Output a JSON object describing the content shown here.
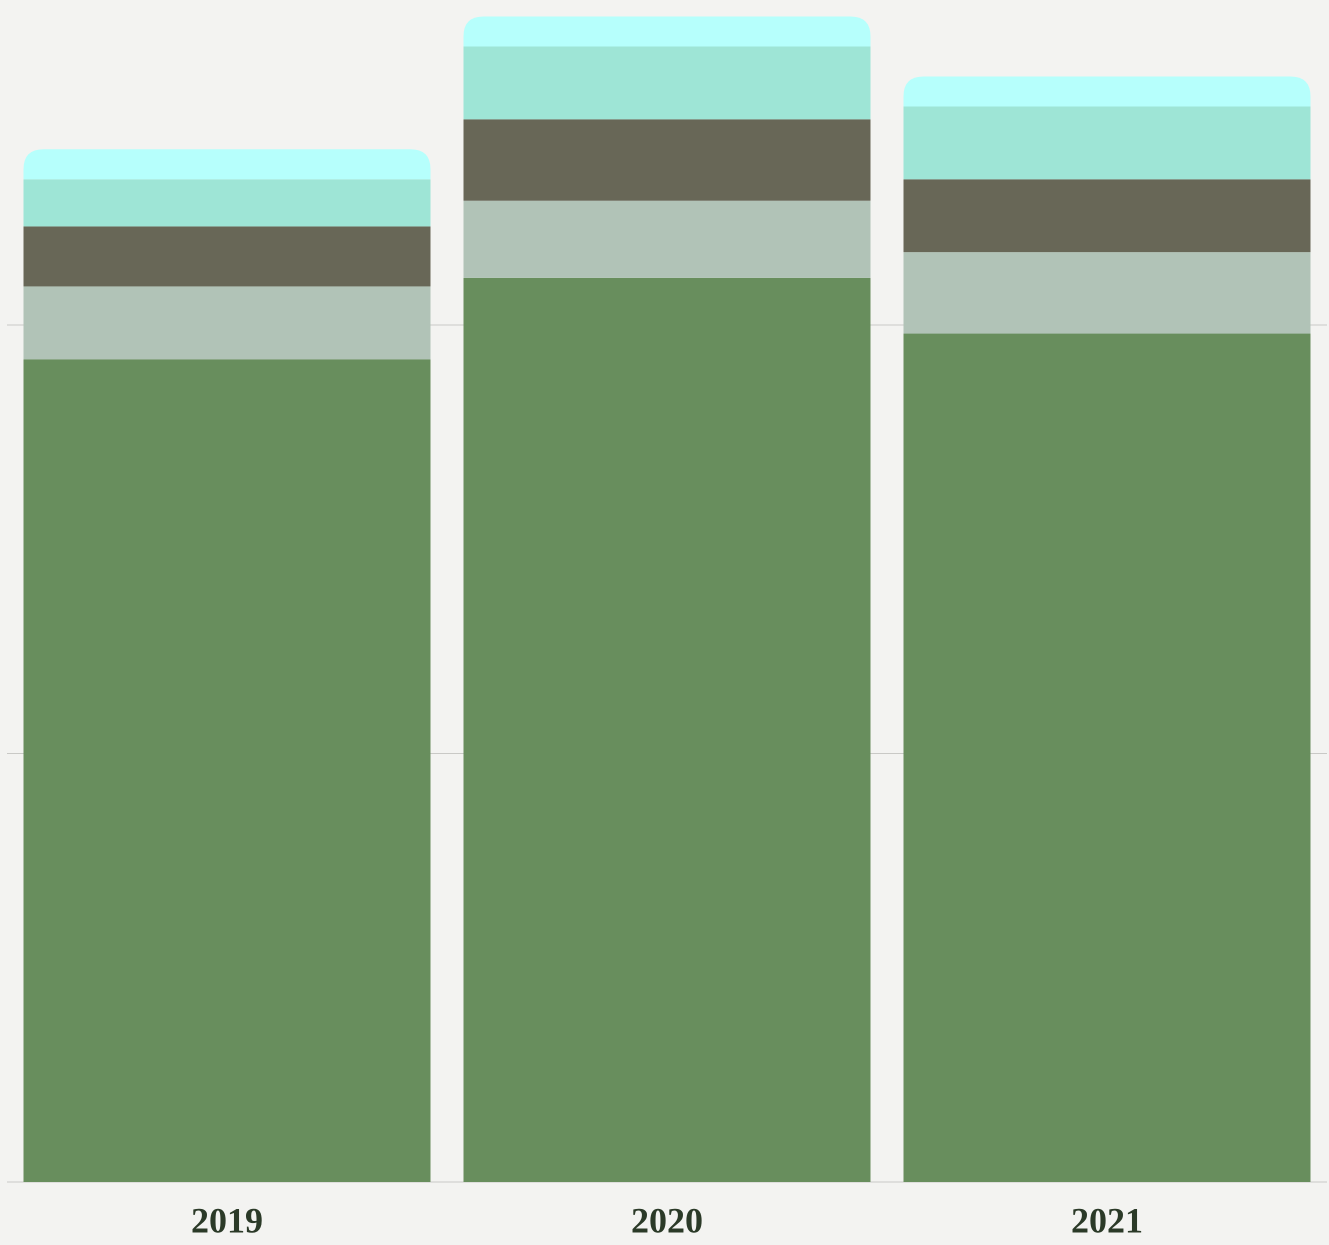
{
  "chart_data": {
    "type": "stacked_bar",
    "categories": [
      "2019",
      "2020",
      "2021"
    ],
    "series": [
      {
        "color": "#688e5d",
        "values": [
          1.92,
          2.11,
          1.98
        ]
      },
      {
        "color": "#b1c3b7",
        "values": [
          0.17,
          0.18,
          0.19
        ]
      },
      {
        "color": "#686757",
        "values": [
          0.14,
          0.19,
          0.17
        ]
      },
      {
        "color": "#9ee5d6",
        "values": [
          0.11,
          0.17,
          0.17
        ]
      },
      {
        "color": "#b6fffc",
        "values": [
          0.07,
          0.07,
          0.07
        ]
      }
    ],
    "ylim": [
      0,
      2.75
    ],
    "yticks": [
      0,
      1,
      2
    ],
    "grid": true
  }
}
